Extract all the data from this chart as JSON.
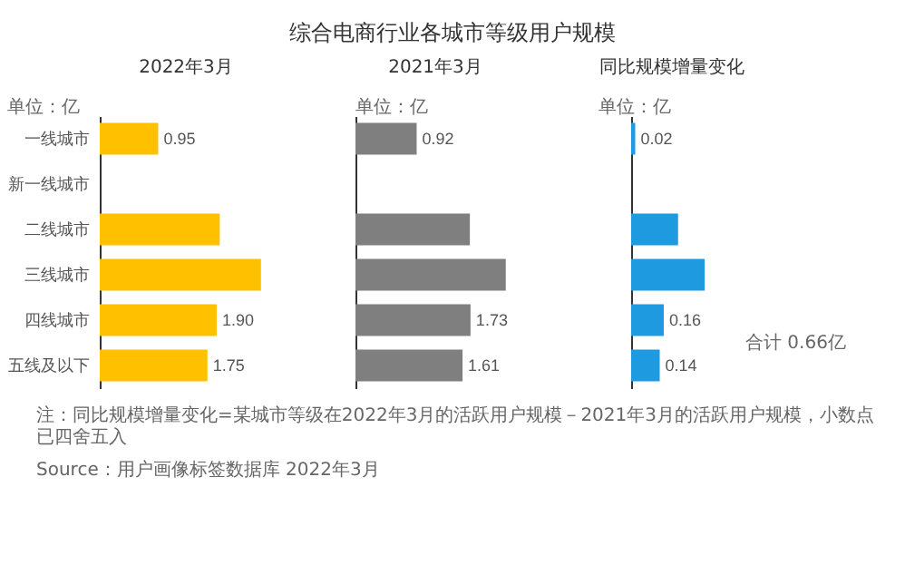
{
  "chart_data": [
    {
      "type": "other",
      "title": "综合电商行业各城市等级用户规模"
    },
    {
      "type": "bar",
      "orientation": "horizontal",
      "subtitle": "2022年3月",
      "annotations": [
        "单位：亿"
      ],
      "tick_labels": "y",
      "categories": [
        "一线城市",
        "新一线城市",
        "二线城市",
        "三线城市",
        "四线城市",
        "五线及以下"
      ],
      "values": [
        0.95,
        null,
        1.95,
        2.62,
        1.9,
        1.75
      ],
      "value_labels": [
        "0.95",
        null,
        null,
        null,
        "1.90",
        "1.75"
      ],
      "color": "#ffc000"
    },
    {
      "type": "bar",
      "orientation": "horizontal",
      "subtitle": "2021年3月",
      "annotations": [
        "单位：亿"
      ],
      "tick_labels": false,
      "categories": [
        null,
        null,
        null,
        null,
        null,
        null
      ],
      "values": [
        0.92,
        null,
        1.72,
        2.26,
        1.73,
        1.61
      ],
      "value_labels": [
        "0.92",
        null,
        null,
        null,
        "1.73",
        "1.61"
      ],
      "color": "#7f7f7f"
    },
    {
      "type": "bar",
      "orientation": "horizontal",
      "subtitle": "同比规模增量变化",
      "annotations": [
        "单位：亿",
        "合计 0.66亿",
        "注：同比规模增量变化=某城市等级在2022年3月的活跃用户规模－2021年3月的活跃用户规模，小数点已四舍五入",
        "Source：用户画像标签数据库 2022年3月"
      ],
      "tick_labels": false,
      "categories": [
        null,
        null,
        null,
        null,
        null,
        null
      ],
      "values": [
        0.02,
        null,
        0.23,
        0.36,
        0.16,
        0.14
      ],
      "value_labels": [
        "0.02",
        null,
        null,
        null,
        "0.16",
        "0.14"
      ],
      "color": "#1e9be0"
    }
  ]
}
